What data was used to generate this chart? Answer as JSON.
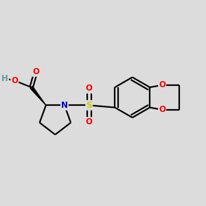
{
  "background_color": "#DCDCDC",
  "bond_color": "#000000",
  "atom_colors": {
    "O": "#FF0000",
    "N": "#0000CC",
    "S": "#CCCC00",
    "H": "#5F9EA0",
    "C": "#000000"
  },
  "figsize": [
    3.0,
    3.0
  ],
  "dpi": 100
}
